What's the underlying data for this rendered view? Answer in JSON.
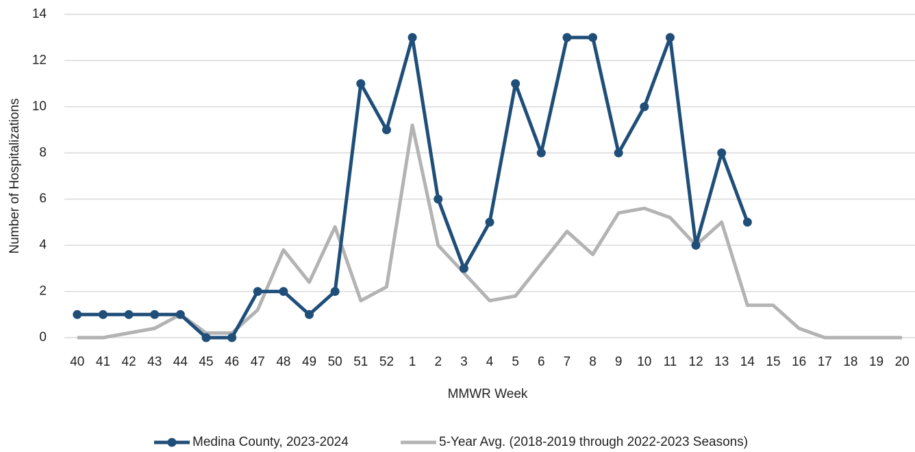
{
  "chart_data": {
    "type": "line",
    "x_label": "MMWR Week",
    "y_label": "Number of Hospitalizations",
    "categories": [
      "40",
      "41",
      "42",
      "43",
      "44",
      "45",
      "46",
      "47",
      "48",
      "49",
      "50",
      "51",
      "52",
      "1",
      "2",
      "3",
      "4",
      "5",
      "6",
      "7",
      "8",
      "9",
      "10",
      "11",
      "12",
      "13",
      "14",
      "15",
      "16",
      "17",
      "18",
      "19",
      "20"
    ],
    "series": [
      {
        "name": "Medina County, 2023-2024",
        "color": "#1f4e79",
        "markers": true,
        "values": [
          1,
          1,
          1,
          1,
          1,
          0,
          0,
          2,
          2,
          1,
          2,
          11,
          9,
          13,
          6,
          3,
          5,
          11,
          8,
          13,
          13,
          8,
          10,
          13,
          4,
          8,
          5,
          null,
          null,
          null,
          null,
          null,
          null
        ]
      },
      {
        "name": "5-Year Avg. (2018-2019 through 2022-2023 Seasons)",
        "color": "#b3b3b3",
        "markers": false,
        "values": [
          0,
          0,
          0.2,
          0.4,
          1,
          0.2,
          0.2,
          1.2,
          3.8,
          2.4,
          4.8,
          1.6,
          2.2,
          9.2,
          4,
          2.8,
          1.6,
          1.8,
          3.2,
          4.6,
          3.6,
          5.4,
          5.6,
          5.2,
          4,
          5,
          1.4,
          1.4,
          0.4,
          0,
          0,
          0,
          0
        ]
      }
    ],
    "ylim": [
      0,
      14
    ],
    "yticks": [
      0,
      2,
      4,
      6,
      8,
      10,
      12,
      14
    ],
    "grid": true,
    "legend": "bottom"
  }
}
